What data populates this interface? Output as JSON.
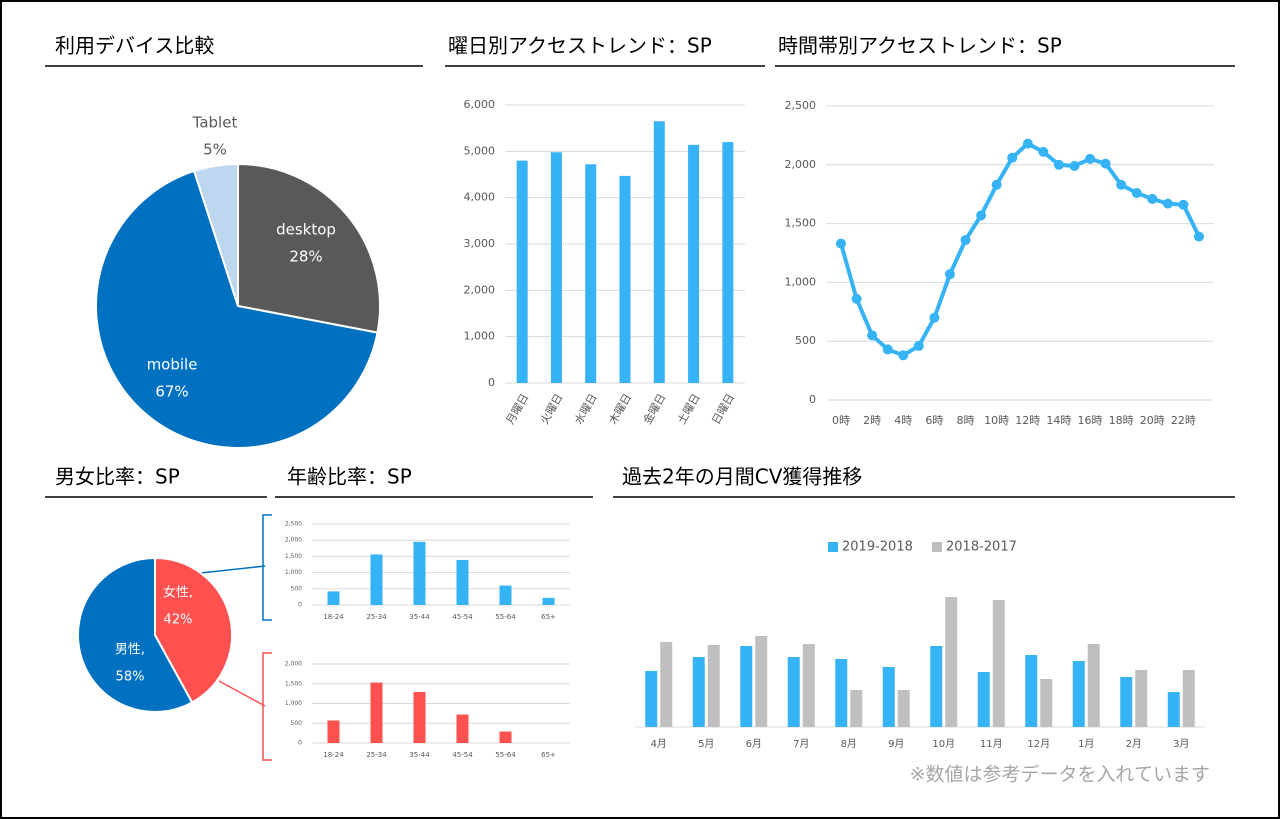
{
  "chart_data": [
    {
      "type": "pie",
      "title": "利用デバイス比較",
      "categories": [
        "desktop",
        "mobile",
        "Tablet"
      ],
      "values": [
        28,
        67,
        5
      ],
      "value_labels": [
        "28%",
        "67%",
        "5%"
      ],
      "colors": [
        "#595959",
        "#0070c0",
        "#bdd7ee"
      ]
    },
    {
      "type": "bar",
      "title": "曜日別アクセストレンド：SP",
      "categories": [
        "月曜日",
        "火曜日",
        "水曜日",
        "木曜日",
        "金曜日",
        "土曜日",
        "日曜日"
      ],
      "values": [
        4800,
        4980,
        4720,
        4470,
        5650,
        5140,
        5200
      ],
      "color": "#36b3f5",
      "ylim": [
        0,
        6000
      ],
      "yticks": [
        0,
        {
          "value": 1000,
          "label": "1,000"
        },
        {
          "value": 2000,
          "label": "2,000"
        },
        {
          "value": 3000,
          "label": "3,000"
        },
        {
          "value": 4000,
          "label": "4,000"
        },
        {
          "value": 5000,
          "label": "5,000"
        },
        {
          "value": 6000,
          "label": "6,000"
        }
      ],
      "grid": true
    },
    {
      "type": "line",
      "title": "時間帯別アクセストレンド：SP",
      "categories": [
        "0時",
        null,
        "2時",
        null,
        "4時",
        null,
        "6時",
        null,
        "8時",
        null,
        "10時",
        null,
        "12時",
        null,
        "14時",
        null,
        "16時",
        null,
        "18時",
        null,
        "20時",
        null,
        "22時",
        null
      ],
      "values": [
        1330,
        860,
        550,
        430,
        380,
        460,
        700,
        1070,
        1360,
        1570,
        1830,
        2060,
        2180,
        2110,
        2000,
        1990,
        2050,
        2010,
        1830,
        1760,
        1710,
        1670,
        1660,
        1390
      ],
      "color": "#36b3f5",
      "ylim": [
        0,
        2500
      ],
      "yticks": [
        0,
        500,
        {
          "value": 1000,
          "label": "1,000"
        },
        {
          "value": 1500,
          "label": "1,500"
        },
        {
          "value": 2000,
          "label": "2,000"
        },
        {
          "value": 2500,
          "label": "2,500"
        }
      ],
      "grid": true
    },
    {
      "type": "pie",
      "title": "男女比率：SP",
      "categories": [
        "女性,",
        "男性,"
      ],
      "values": [
        42,
        58
      ],
      "value_labels": [
        "42%",
        "58%"
      ],
      "colors": [
        "#ff5050",
        "#0070c0"
      ]
    },
    {
      "type": "bar",
      "title": "年齢比率：SP",
      "categories": [
        "18-24",
        "25-34",
        "35-44",
        "45-54",
        "55-64",
        "65+"
      ],
      "values": [
        420,
        1560,
        1950,
        1390,
        600,
        220
      ],
      "color": "#36b3f5",
      "ylim": [
        0,
        2500
      ],
      "yticks": [
        0,
        500,
        {
          "value": 1000,
          "label": "1,000"
        },
        {
          "value": 1500,
          "label": "1,500"
        },
        {
          "value": 2000,
          "label": "2,000"
        },
        {
          "value": 2500,
          "label": "2,500"
        }
      ],
      "grid": true
    },
    {
      "type": "bar",
      "categories": [
        "18-24",
        "25-34",
        "35-44",
        "45-54",
        "55-64",
        "65+"
      ],
      "values": [
        570,
        1530,
        1290,
        720,
        290,
        0
      ],
      "color": "#ff5050",
      "ylim": [
        0,
        2000
      ],
      "yticks": [
        0,
        500,
        {
          "value": 1000,
          "label": "1,000"
        },
        {
          "value": 1500,
          "label": "1,500"
        },
        {
          "value": 2000,
          "label": "2,000"
        }
      ],
      "grid": true
    },
    {
      "type": "bar",
      "title": "過去2年の月間CV獲得推移",
      "categories": [
        "4月",
        "5月",
        "6月",
        "7月",
        "8月",
        "9月",
        "10月",
        "11月",
        "12月",
        "1月",
        "2月",
        "3月"
      ],
      "series": [
        {
          "name": "2019-2018",
          "color": "#36b3f5",
          "values": [
            56,
            70,
            81,
            70,
            68,
            60,
            81,
            55,
            72,
            66,
            50,
            35
          ]
        },
        {
          "name": "2018-2017",
          "color": "#bfbfbf",
          "values": [
            85,
            82,
            91,
            83,
            37,
            37,
            130,
            127,
            48,
            83,
            57,
            57
          ]
        }
      ],
      "ylim": [
        0,
        140
      ]
    }
  ],
  "note": "※数値は参考データを入れています"
}
